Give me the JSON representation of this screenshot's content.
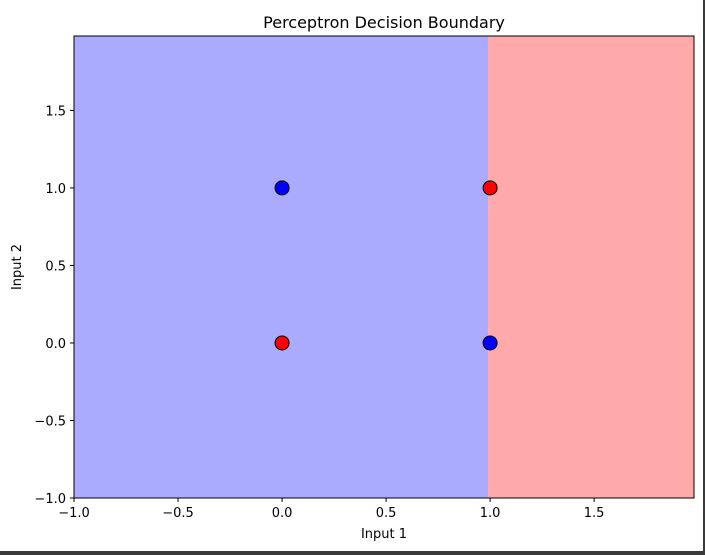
{
  "chart_data": {
    "type": "scatter",
    "title": "Perceptron Decision Boundary",
    "xlabel": "Input 1",
    "ylabel": "Input 2",
    "xlim": [
      -1.0,
      1.98
    ],
    "ylim": [
      -1.0,
      1.98
    ],
    "xticks": [
      -1.0,
      -0.5,
      0.0,
      0.5,
      1.0,
      1.5
    ],
    "xtick_labels": [
      "−1.0",
      "−0.5",
      "0.0",
      "0.5",
      "1.0",
      "1.5"
    ],
    "yticks": [
      -1.0,
      -0.5,
      0.0,
      0.5,
      1.0,
      1.5
    ],
    "ytick_labels": [
      "−1.0",
      "−0.5",
      "0.0",
      "0.5",
      "1.0",
      "1.5"
    ],
    "grid": false,
    "decision_regions": [
      {
        "x_from": -1.0,
        "x_to": 0.99,
        "color": "#aaaaff"
      },
      {
        "x_from": 0.99,
        "x_to": 1.98,
        "color": "#ffaaaa"
      }
    ],
    "points": [
      {
        "x": 0.0,
        "y": 0.0,
        "color": "#ff0000"
      },
      {
        "x": 0.0,
        "y": 1.0,
        "color": "#0000ff"
      },
      {
        "x": 1.0,
        "y": 0.0,
        "color": "#0000ff"
      },
      {
        "x": 1.0,
        "y": 1.0,
        "color": "#ff0000"
      }
    ]
  }
}
